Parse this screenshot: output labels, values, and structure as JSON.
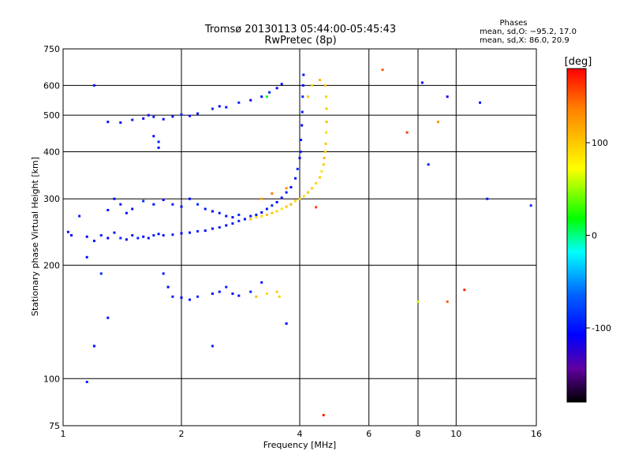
{
  "chart_data": {
    "type": "scatter",
    "title": "Tromsø 20130113 05:44:00-05:45:43",
    "subtitle": "RwPretec (8p)",
    "xlabel": "Frequency [MHz]",
    "ylabel": "Stationary phase Virtual Height [km]",
    "x_scale": "log",
    "y_scale": "log",
    "xlim": [
      1,
      16
    ],
    "ylim": [
      75,
      750
    ],
    "x_ticks": [
      1,
      2,
      4,
      6,
      8,
      10,
      16
    ],
    "y_ticks": [
      75,
      100,
      200,
      300,
      400,
      500,
      600,
      750
    ],
    "grid": true,
    "stats": {
      "heading": "Phases",
      "line_o": "mean, sd,O: −95.2, 17.0",
      "line_x": "mean, sd,X:  86.0, 20.9"
    },
    "colorbar": {
      "label": "[deg]",
      "range": [
        -180,
        180
      ],
      "ticks": [
        100,
        0,
        -100
      ],
      "colors": [
        "#ff0000",
        "#ff8000",
        "#ffff00",
        "#00ff00",
        "#00ffff",
        "#0060ff",
        "#0000ff",
        "#6000a0",
        "#000000"
      ]
    },
    "series": [
      {
        "name": "O",
        "points": [
          [
            1.03,
            245,
            -100
          ],
          [
            1.05,
            240,
            -110
          ],
          [
            1.1,
            270,
            -95
          ],
          [
            1.15,
            238,
            -105
          ],
          [
            1.2,
            232,
            -100
          ],
          [
            1.25,
            240,
            -95
          ],
          [
            1.3,
            236,
            -110
          ],
          [
            1.35,
            244,
            -100
          ],
          [
            1.4,
            236,
            -90
          ],
          [
            1.45,
            234,
            -105
          ],
          [
            1.5,
            240,
            -100
          ],
          [
            1.55,
            236,
            -95
          ],
          [
            1.6,
            238,
            -110
          ],
          [
            1.65,
            236,
            -100
          ],
          [
            1.7,
            240,
            -90
          ],
          [
            1.75,
            242,
            -105
          ],
          [
            1.8,
            240,
            -100
          ],
          [
            1.9,
            241,
            -95
          ],
          [
            2.0,
            243,
            -110
          ],
          [
            2.1,
            244,
            -100
          ],
          [
            2.2,
            246,
            -90
          ],
          [
            2.3,
            247,
            -105
          ],
          [
            2.4,
            250,
            -100
          ],
          [
            2.5,
            252,
            -95
          ],
          [
            2.6,
            255,
            -110
          ],
          [
            2.7,
            258,
            -100
          ],
          [
            2.8,
            262,
            -90
          ],
          [
            2.9,
            265,
            -105
          ],
          [
            3.0,
            270,
            -100
          ],
          [
            3.1,
            272,
            -95
          ],
          [
            3.2,
            276,
            -110
          ],
          [
            3.3,
            282,
            -100
          ],
          [
            3.4,
            288,
            -90
          ],
          [
            3.5,
            294,
            -105
          ],
          [
            3.6,
            302,
            -100
          ],
          [
            3.7,
            312,
            -95
          ],
          [
            3.8,
            322,
            -110
          ],
          [
            3.9,
            340,
            -100
          ],
          [
            3.95,
            360,
            -90
          ],
          [
            4.0,
            385,
            -105
          ],
          [
            4.02,
            400,
            -100
          ],
          [
            4.03,
            430,
            -95
          ],
          [
            4.05,
            470,
            -110
          ],
          [
            4.06,
            510,
            -100
          ],
          [
            4.07,
            560,
            -90
          ],
          [
            4.08,
            600,
            -105
          ],
          [
            4.09,
            640,
            -100
          ],
          [
            1.3,
            280,
            -100
          ],
          [
            1.35,
            300,
            -110
          ],
          [
            1.4,
            290,
            -95
          ],
          [
            1.45,
            275,
            -100
          ],
          [
            1.5,
            282,
            -105
          ],
          [
            1.6,
            296,
            -90
          ],
          [
            1.7,
            290,
            -100
          ],
          [
            1.8,
            298,
            -110
          ],
          [
            1.9,
            290,
            -95
          ],
          [
            2.0,
            286,
            -100
          ],
          [
            2.1,
            300,
            -105
          ],
          [
            2.2,
            290,
            -90
          ],
          [
            2.3,
            282,
            -100
          ],
          [
            2.4,
            278,
            -110
          ],
          [
            2.5,
            275,
            -95
          ],
          [
            2.6,
            270,
            -100
          ],
          [
            2.7,
            268,
            -105
          ],
          [
            2.8,
            272,
            -90
          ],
          [
            1.3,
            480,
            -100
          ],
          [
            1.4,
            478,
            -105
          ],
          [
            1.5,
            486,
            -95
          ],
          [
            1.6,
            490,
            -110
          ],
          [
            1.65,
            500,
            -100
          ],
          [
            1.7,
            495,
            -90
          ],
          [
            1.8,
            488,
            -105
          ],
          [
            1.9,
            496,
            -100
          ],
          [
            2.0,
            502,
            -95
          ],
          [
            2.1,
            498,
            -110
          ],
          [
            2.2,
            505,
            -100
          ],
          [
            2.4,
            520,
            -90
          ],
          [
            2.5,
            528,
            -105
          ],
          [
            2.6,
            525,
            -100
          ],
          [
            2.8,
            540,
            -95
          ],
          [
            3.0,
            548,
            -110
          ],
          [
            3.2,
            560,
            -100
          ],
          [
            3.35,
            575,
            -90
          ],
          [
            3.5,
            590,
            -105
          ],
          [
            3.6,
            605,
            -100
          ],
          [
            1.7,
            440,
            -100
          ],
          [
            1.75,
            425,
            -95
          ],
          [
            1.75,
            410,
            -110
          ],
          [
            1.8,
            190,
            -100
          ],
          [
            1.85,
            175,
            -105
          ],
          [
            1.9,
            165,
            -95
          ],
          [
            2.0,
            164,
            -110
          ],
          [
            2.1,
            162,
            -100
          ],
          [
            2.2,
            165,
            -90
          ],
          [
            2.4,
            168,
            -105
          ],
          [
            2.5,
            170,
            -100
          ],
          [
            2.6,
            175,
            -95
          ],
          [
            2.7,
            168,
            -110
          ],
          [
            2.8,
            166,
            -100
          ],
          [
            3.0,
            170,
            -90
          ],
          [
            1.15,
            98,
            -95
          ],
          [
            1.2,
            122,
            -110
          ],
          [
            1.3,
            145,
            -100
          ],
          [
            1.25,
            190,
            -90
          ],
          [
            1.15,
            210,
            -105
          ],
          [
            1.2,
            600,
            -100
          ],
          [
            8.5,
            370,
            -95
          ],
          [
            9.5,
            560,
            -110
          ],
          [
            11.5,
            540,
            -100
          ],
          [
            15.5,
            288,
            -90
          ],
          [
            8.2,
            610,
            -105
          ],
          [
            12.0,
            300,
            -100
          ],
          [
            2.4,
            122,
            -95
          ],
          [
            3.7,
            140,
            -110
          ],
          [
            3.2,
            180,
            -100
          ]
        ]
      },
      {
        "name": "X",
        "points": [
          [
            3.0,
            265,
            100
          ],
          [
            3.1,
            268,
            95
          ],
          [
            3.2,
            270,
            90
          ],
          [
            3.3,
            272,
            105
          ],
          [
            3.4,
            275,
            100
          ],
          [
            3.5,
            278,
            95
          ],
          [
            3.6,
            282,
            85
          ],
          [
            3.7,
            286,
            100
          ],
          [
            3.8,
            290,
            110
          ],
          [
            3.9,
            296,
            95
          ],
          [
            4.0,
            300,
            100
          ],
          [
            4.1,
            305,
            90
          ],
          [
            4.2,
            312,
            105
          ],
          [
            4.3,
            320,
            100
          ],
          [
            4.4,
            330,
            95
          ],
          [
            4.5,
            342,
            100
          ],
          [
            4.55,
            355,
            85
          ],
          [
            4.6,
            370,
            100
          ],
          [
            4.62,
            385,
            110
          ],
          [
            4.65,
            400,
            95
          ],
          [
            4.66,
            420,
            100
          ],
          [
            4.67,
            450,
            90
          ],
          [
            4.68,
            480,
            105
          ],
          [
            4.68,
            520,
            100
          ],
          [
            4.67,
            560,
            95
          ],
          [
            4.65,
            600,
            100
          ],
          [
            4.5,
            620,
            110
          ],
          [
            4.3,
            600,
            95
          ],
          [
            4.2,
            560,
            100
          ],
          [
            3.5,
            170,
            100
          ],
          [
            3.55,
            165,
            95
          ],
          [
            3.3,
            168,
            90
          ],
          [
            3.1,
            165,
            105
          ],
          [
            3.2,
            300,
            120
          ],
          [
            3.4,
            310,
            140
          ],
          [
            3.7,
            320,
            130
          ],
          [
            4.4,
            285,
            160
          ],
          [
            6.5,
            660,
            150
          ],
          [
            9.0,
            480,
            130
          ],
          [
            9.5,
            160,
            150
          ],
          [
            10.5,
            172,
            170
          ],
          [
            4.6,
            80,
            170
          ],
          [
            7.5,
            450,
            160
          ],
          [
            8.0,
            160,
            60
          ],
          [
            3.3,
            560,
            20
          ]
        ]
      }
    ]
  }
}
